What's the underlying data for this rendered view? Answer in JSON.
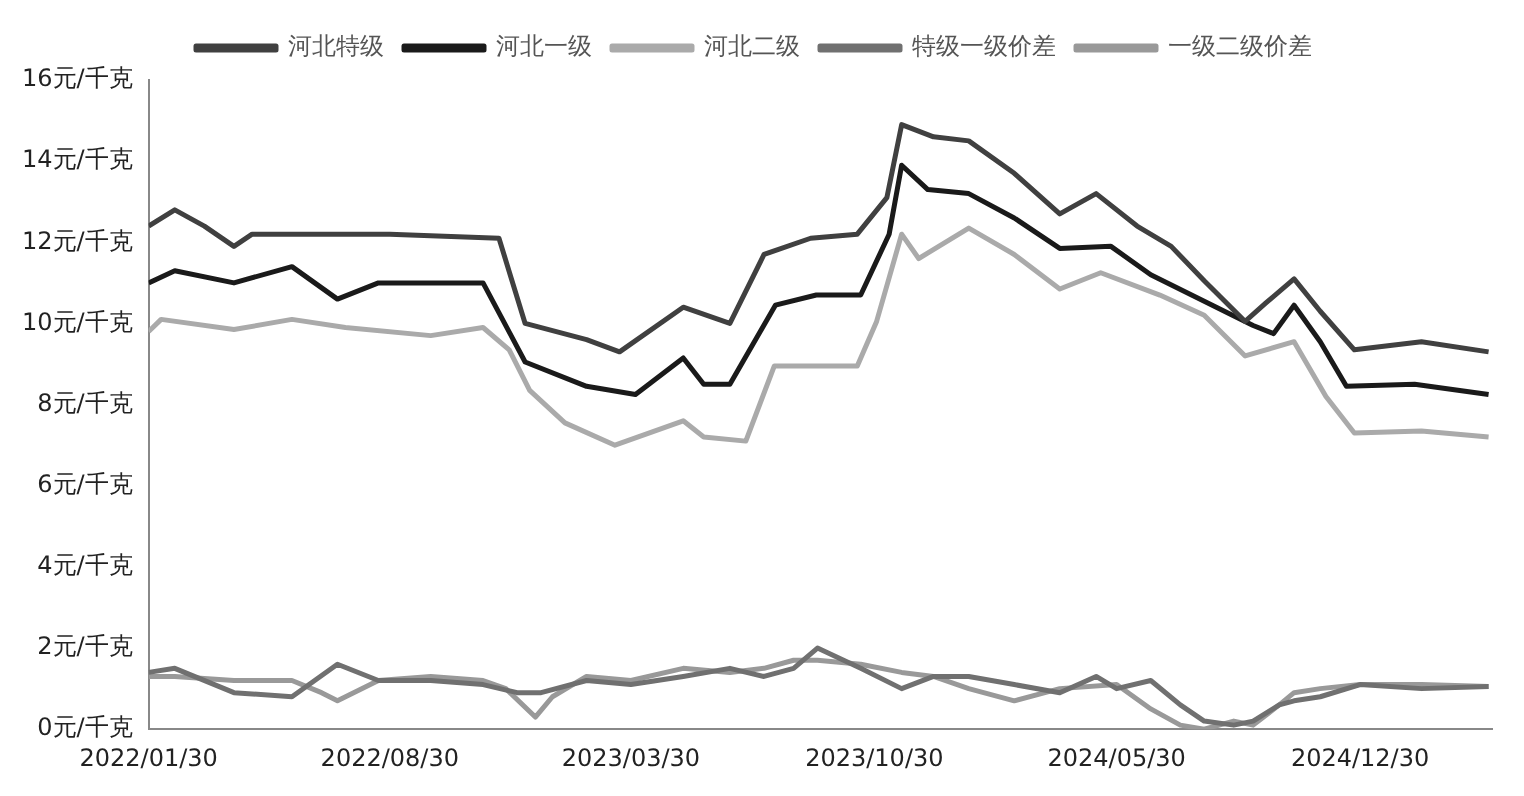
{
  "chart_data": {
    "type": "line",
    "legend": "top",
    "grid": false,
    "marker": "none",
    "line_style": "solid",
    "xlim": [
      "2022-01-30",
      "2025-04-25"
    ],
    "xticks": [
      {
        "value": "2022-01-30",
        "label": "2022/01/30"
      },
      {
        "value": "2022-08-30",
        "label": "2022/08/30"
      },
      {
        "value": "2023-03-30",
        "label": "2023/03/30"
      },
      {
        "value": "2023-10-30",
        "label": "2023/10/30"
      },
      {
        "value": "2024-05-30",
        "label": "2024/05/30"
      },
      {
        "value": "2024-12-30",
        "label": "2024/12/30"
      }
    ],
    "ylim": [
      0,
      16
    ],
    "yticks": [
      {
        "value": 0,
        "label": "0元/千克"
      },
      {
        "value": 2,
        "label": "2元/千克"
      },
      {
        "value": 4,
        "label": "4元/千克"
      },
      {
        "value": 6,
        "label": "6元/千克"
      },
      {
        "value": 8,
        "label": "8元/千克"
      },
      {
        "value": 10,
        "label": "10元/千克"
      },
      {
        "value": 12,
        "label": "12元/千克"
      },
      {
        "value": 14,
        "label": "14元/千克"
      },
      {
        "value": 16,
        "label": "16元/千克"
      }
    ],
    "series": [
      {
        "name": "河北特级",
        "color": "#404040",
        "x": [
          "2022-01-30",
          "2022-02-22",
          "2022-03-20",
          "2022-04-15",
          "2022-05-01",
          "2022-08-30",
          "2022-12-04",
          "2022-12-27",
          "2023-02-19",
          "2023-03-20",
          "2023-05-15",
          "2023-06-25",
          "2023-07-25",
          "2023-09-04",
          "2023-10-15",
          "2023-11-10",
          "2023-11-23",
          "2023-12-21",
          "2024-01-21",
          "2024-03-01",
          "2024-04-10",
          "2024-05-12",
          "2024-06-17",
          "2024-07-17",
          "2024-08-15",
          "2024-09-20",
          "2024-10-08",
          "2024-11-02",
          "2024-11-25",
          "2024-12-25",
          "2025-02-22",
          "2025-04-22"
        ],
        "values": [
          12.4,
          12.8,
          12.4,
          11.9,
          12.2,
          12.2,
          12.1,
          10.0,
          9.6,
          9.3,
          10.4,
          10.0,
          11.7,
          12.1,
          12.2,
          13.1,
          14.9,
          14.6,
          14.5,
          13.7,
          12.7,
          13.2,
          12.4,
          11.9,
          11.05,
          10.05,
          10.5,
          11.1,
          10.3,
          9.35,
          9.55,
          9.3
        ]
      },
      {
        "name": "河北一级",
        "color": "#1a1a1a",
        "x": [
          "2022-01-30",
          "2022-02-22",
          "2022-04-15",
          "2022-06-05",
          "2022-07-15",
          "2022-08-20",
          "2022-11-20",
          "2022-12-27",
          "2023-02-19",
          "2023-04-03",
          "2023-05-15",
          "2023-06-02",
          "2023-06-25",
          "2023-08-04",
          "2023-09-09",
          "2023-10-18",
          "2023-11-12",
          "2023-11-23",
          "2023-12-16",
          "2024-01-21",
          "2024-03-01",
          "2024-04-10",
          "2024-05-25",
          "2024-06-29",
          "2024-08-15",
          "2024-09-27",
          "2024-10-15",
          "2024-11-02",
          "2024-11-25",
          "2024-12-18",
          "2025-02-16",
          "2025-04-22"
        ],
        "values": [
          11.0,
          11.3,
          11.0,
          11.4,
          10.6,
          11.0,
          11.0,
          9.05,
          8.45,
          8.25,
          9.15,
          8.5,
          8.5,
          10.45,
          10.7,
          10.7,
          12.2,
          13.9,
          13.3,
          13.2,
          12.6,
          11.85,
          11.9,
          11.2,
          10.55,
          9.95,
          9.75,
          10.45,
          9.55,
          8.45,
          8.5,
          8.25
        ]
      },
      {
        "name": "河北二级",
        "color": "#aaaaaa",
        "x": [
          "2022-01-30",
          "2022-02-10",
          "2022-04-15",
          "2022-06-05",
          "2022-07-22",
          "2022-10-05",
          "2022-11-20",
          "2022-12-13",
          "2022-12-31",
          "2023-01-31",
          "2023-03-16",
          "2023-05-15",
          "2023-06-02",
          "2023-07-09",
          "2023-08-03",
          "2023-10-15",
          "2023-11-01",
          "2023-11-23",
          "2023-12-08",
          "2024-01-21",
          "2024-03-01",
          "2024-04-10",
          "2024-05-16",
          "2024-07-07",
          "2024-08-15",
          "2024-09-20",
          "2024-11-02",
          "2024-11-30",
          "2024-12-25",
          "2025-02-22",
          "2025-04-22"
        ],
        "values": [
          9.8,
          10.1,
          9.85,
          10.1,
          9.9,
          9.7,
          9.9,
          9.35,
          8.35,
          7.55,
          7.0,
          7.6,
          7.2,
          7.1,
          8.95,
          8.95,
          10.05,
          12.2,
          11.6,
          12.35,
          11.7,
          10.85,
          11.25,
          10.7,
          10.2,
          9.2,
          9.55,
          8.2,
          7.3,
          7.35,
          7.2
        ]
      },
      {
        "name": "特级一级价差",
        "color": "#707070",
        "x": [
          "2022-01-30",
          "2022-02-22",
          "2022-04-15",
          "2022-06-05",
          "2022-07-15",
          "2022-08-20",
          "2022-10-05",
          "2022-11-20",
          "2022-12-20",
          "2023-01-10",
          "2023-02-19",
          "2023-03-30",
          "2023-05-15",
          "2023-06-25",
          "2023-07-25",
          "2023-08-20",
          "2023-09-10",
          "2023-10-18",
          "2023-11-23",
          "2023-12-21",
          "2024-01-21",
          "2024-03-01",
          "2024-04-10",
          "2024-05-12",
          "2024-05-30",
          "2024-06-29",
          "2024-07-25",
          "2024-08-15",
          "2024-09-10",
          "2024-09-27",
          "2024-10-20",
          "2024-11-02",
          "2024-11-25",
          "2024-12-30",
          "2025-02-22",
          "2025-04-22"
        ],
        "values": [
          1.4,
          1.5,
          0.9,
          0.8,
          1.6,
          1.2,
          1.2,
          1.1,
          0.9,
          0.9,
          1.2,
          1.1,
          1.3,
          1.5,
          1.3,
          1.5,
          2.0,
          1.5,
          1.0,
          1.3,
          1.3,
          1.1,
          0.9,
          1.3,
          1.0,
          1.2,
          0.6,
          0.2,
          0.1,
          0.2,
          0.6,
          0.7,
          0.8,
          1.1,
          1.0,
          1.05
        ]
      },
      {
        "name": "一级二级价差",
        "color": "#999999",
        "x": [
          "2022-01-30",
          "2022-02-22",
          "2022-04-15",
          "2022-06-05",
          "2022-07-01",
          "2022-07-15",
          "2022-08-20",
          "2022-10-05",
          "2022-11-20",
          "2022-12-10",
          "2023-01-05",
          "2023-01-20",
          "2023-02-19",
          "2023-03-30",
          "2023-05-15",
          "2023-06-25",
          "2023-07-25",
          "2023-08-20",
          "2023-09-10",
          "2023-10-18",
          "2023-11-23",
          "2023-12-21",
          "2024-01-21",
          "2024-03-01",
          "2024-04-10",
          "2024-05-30",
          "2024-06-29",
          "2024-07-25",
          "2024-08-15",
          "2024-09-10",
          "2024-09-27",
          "2024-10-20",
          "2024-11-02",
          "2024-11-25",
          "2024-12-30",
          "2025-02-22",
          "2025-04-22"
        ],
        "values": [
          1.3,
          1.3,
          1.2,
          1.2,
          0.9,
          0.7,
          1.2,
          1.3,
          1.2,
          1.0,
          0.3,
          0.8,
          1.3,
          1.2,
          1.5,
          1.4,
          1.5,
          1.7,
          1.7,
          1.6,
          1.4,
          1.3,
          1.0,
          0.7,
          1.0,
          1.1,
          0.5,
          0.1,
          0.0,
          0.2,
          0.1,
          0.6,
          0.9,
          1.0,
          1.1,
          1.1,
          1.05
        ]
      }
    ]
  }
}
